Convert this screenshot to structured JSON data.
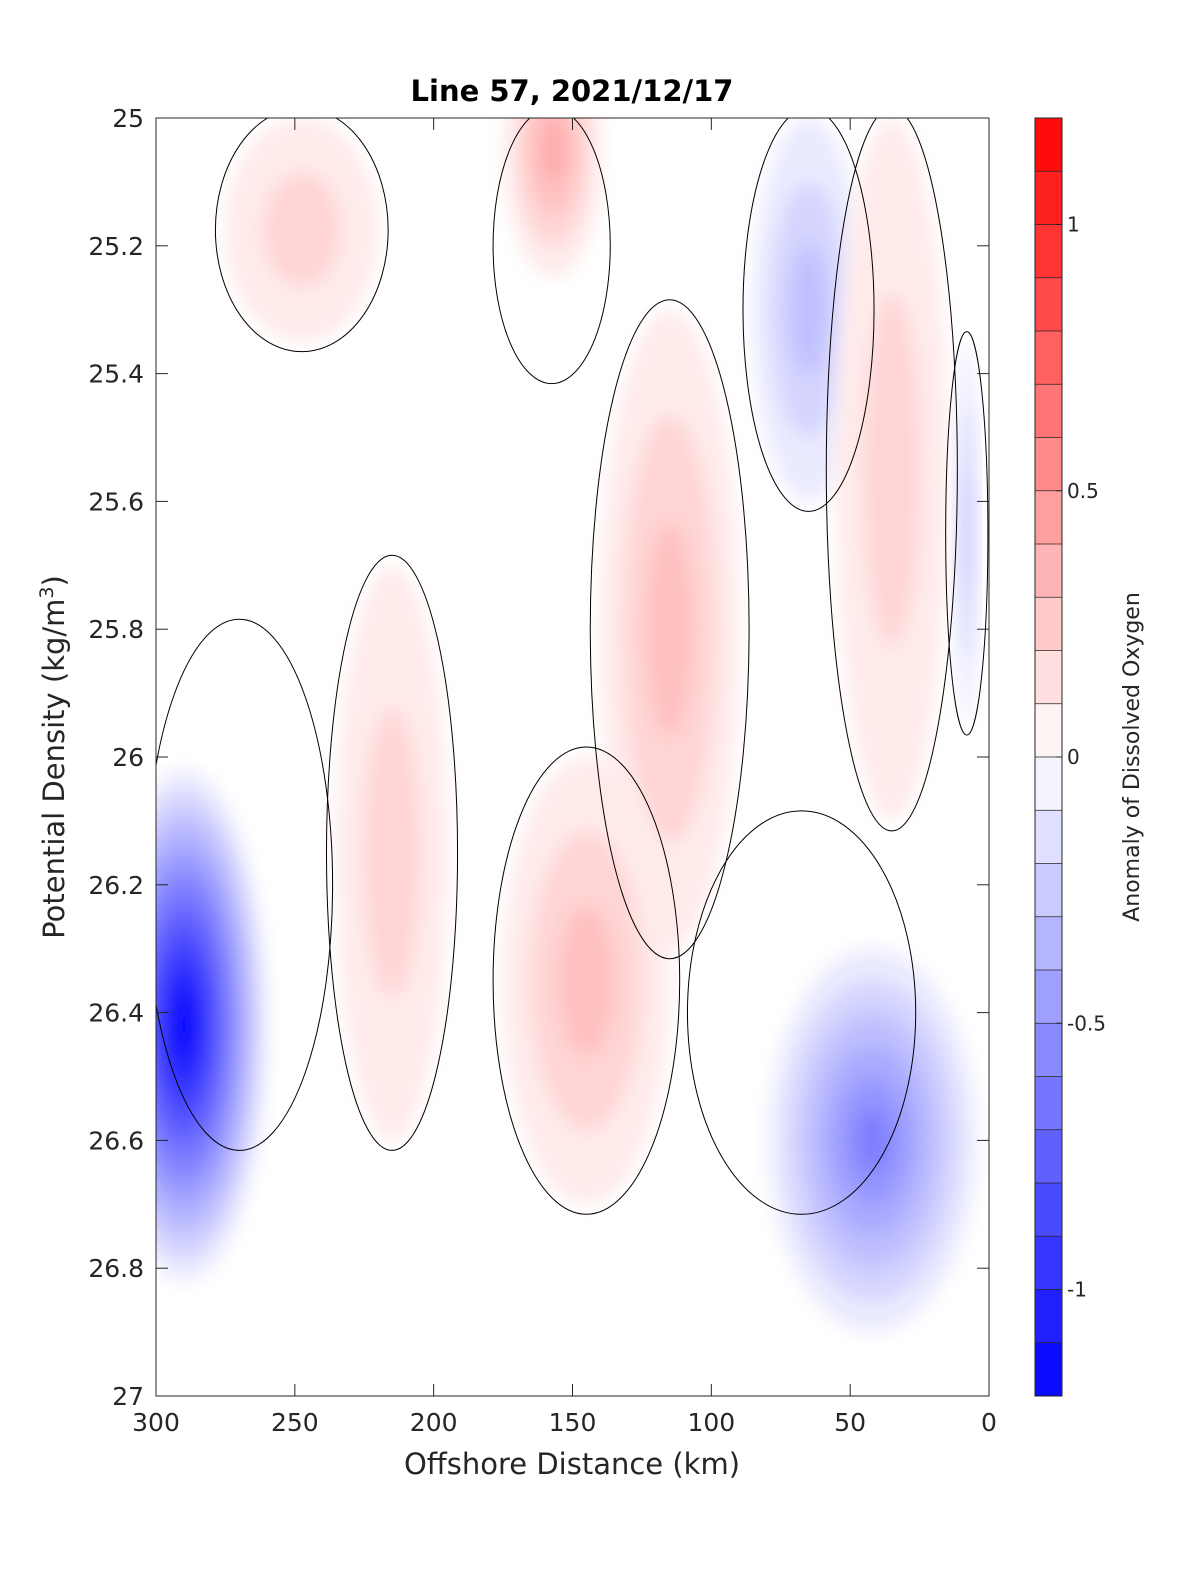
{
  "chart_data": {
    "type": "heatmap",
    "subtype": "filled-contour section",
    "title": "Line 57, 2021/12/17",
    "xlabel": "Offshore Distance (km)",
    "ylabel": "Potential Density (kg/m",
    "ylabel_sup": "3",
    "ylabel_close": ")",
    "colorbar_label": "Anomaly of Dissolved Oxygen",
    "xlim": [
      300,
      0
    ],
    "x_reversed": true,
    "xticks": [
      300,
      250,
      200,
      150,
      100,
      50,
      0
    ],
    "xtick_labels": [
      "300",
      "250",
      "200",
      "150",
      "100",
      "50",
      "0"
    ],
    "ylim": [
      25,
      27
    ],
    "y_reversed": true,
    "yticks": [
      25,
      25.2,
      25.4,
      25.6,
      25.8,
      26,
      26.2,
      26.4,
      26.6,
      26.8,
      27
    ],
    "ytick_labels": [
      "25",
      "25.2",
      "25.4",
      "25.6",
      "25.8",
      "26",
      "26.2",
      "26.4",
      "26.6",
      "26.8",
      "27"
    ],
    "colorbar": {
      "range": [
        -1.2,
        1.2
      ],
      "step": 0.1,
      "ticks": [
        -1,
        -0.5,
        0,
        0.5,
        1
      ],
      "tick_labels": [
        "-1",
        "-0.5",
        "0",
        "0.5",
        "1"
      ],
      "colormap": "blue-white-red",
      "low_color": "#0000ff",
      "mid_color": "#ffffff",
      "high_color": "#ff0000"
    },
    "contour_lines": [
      0
    ],
    "contour_line_color": "#000000",
    "grid": false,
    "features": [
      {
        "name": "strong low anomaly core",
        "sign": "negative",
        "x_range": [
          300,
          240
        ],
        "y_range": [
          25.8,
          26.6
        ],
        "peak_value": -1.2,
        "peak_at": [
          290,
          26.42
        ]
      },
      {
        "name": "near-shore low strip",
        "sign": "negative",
        "x_range": [
          12,
          4
        ],
        "y_range": [
          25.35,
          25.95
        ],
        "peak_value": -0.3
      },
      {
        "name": "near-shore low lobe",
        "sign": "negative",
        "x_range": [
          85,
          45
        ],
        "y_range": [
          25.0,
          25.6
        ],
        "peak_value": -0.3
      },
      {
        "name": "deep low lobe",
        "sign": "negative",
        "x_range": [
          105,
          30
        ],
        "y_range": [
          26.1,
          26.7
        ],
        "peak_value": -0.6,
        "peak_at": [
          42,
          26.6
        ]
      },
      {
        "name": "high anomaly core",
        "sign": "positive",
        "x_range": [
          175,
          140
        ],
        "y_range": [
          25.0,
          25.4
        ],
        "peak_value": 0.4,
        "peak_at": [
          157,
          25.05
        ]
      },
      {
        "name": "mid-section high band",
        "sign": "positive",
        "x_range": [
          140,
          90
        ],
        "y_range": [
          25.3,
          26.3
        ],
        "peak_value": 0.3
      },
      {
        "name": "deep high band",
        "sign": "positive",
        "x_range": [
          175,
          115
        ],
        "y_range": [
          26.0,
          26.7
        ],
        "peak_value": 0.3
      },
      {
        "name": "upper offshore high",
        "sign": "positive",
        "x_range": [
          275,
          220
        ],
        "y_range": [
          25.0,
          25.35
        ],
        "peak_value": 0.2
      },
      {
        "name": "mid-depth offshore high",
        "sign": "positive",
        "x_range": [
          235,
          195
        ],
        "y_range": [
          25.7,
          26.6
        ],
        "peak_value": 0.2
      },
      {
        "name": "near-shore high",
        "sign": "positive",
        "x_range": [
          55,
          15
        ],
        "y_range": [
          25.0,
          26.1
        ],
        "peak_value": 0.2
      }
    ]
  }
}
